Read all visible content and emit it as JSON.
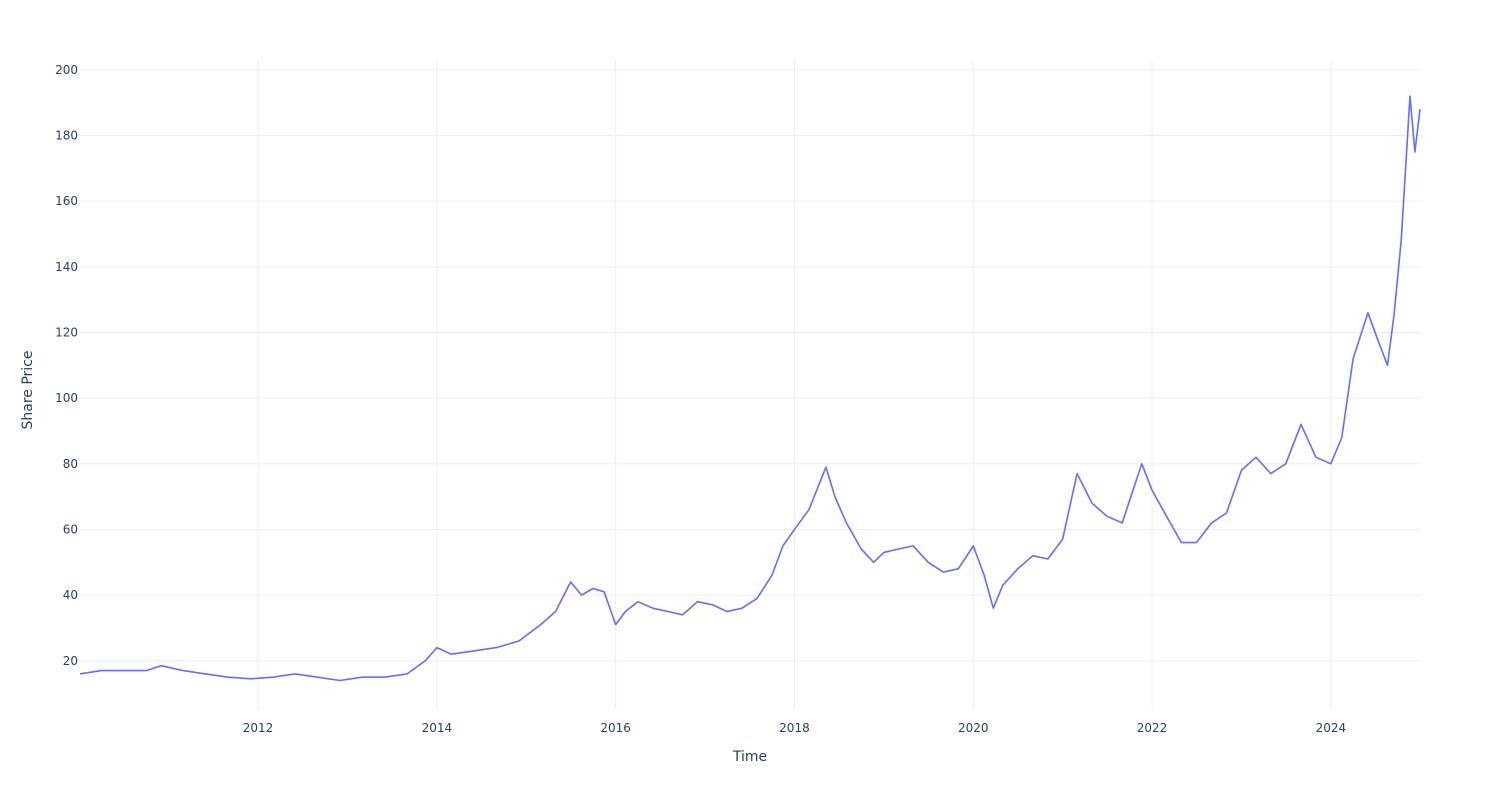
{
  "chart_data": {
    "type": "line",
    "xlabel": "Time",
    "ylabel": "Share Price",
    "x_tick_labels": [
      "2012",
      "2014",
      "2016",
      "2018",
      "2020",
      "2022",
      "2024"
    ],
    "y_tick_labels": [
      "20",
      "40",
      "60",
      "80",
      "100",
      "120",
      "140",
      "160",
      "180",
      "200"
    ],
    "xlim": [
      "2010-01-04",
      "2024-12-31"
    ],
    "ylim": [
      5,
      203
    ],
    "grid": true,
    "legend": "none",
    "colors": {
      "line": "#636efa",
      "grid": "#ebf0f8",
      "text": "#2a3f5f",
      "background": "#ffffff"
    },
    "series": [
      {
        "x": [
          "2010-01-04",
          "2010-04-01",
          "2010-07-01",
          "2010-10-01",
          "2010-12-01",
          "2011-03-01",
          "2011-06-01",
          "2011-09-01",
          "2011-12-01",
          "2012-03-01",
          "2012-06-01",
          "2012-09-01",
          "2012-12-01",
          "2013-03-01",
          "2013-06-01",
          "2013-09-01",
          "2013-11-15",
          "2014-01-01",
          "2014-03-01",
          "2014-06-01",
          "2014-09-01",
          "2014-12-01",
          "2015-03-01",
          "2015-05-01",
          "2015-07-01",
          "2015-08-15",
          "2015-10-01",
          "2015-11-15",
          "2016-01-01",
          "2016-02-10",
          "2016-04-01",
          "2016-06-01",
          "2016-08-01",
          "2016-10-01",
          "2016-12-01",
          "2017-02-01",
          "2017-04-01",
          "2017-06-01",
          "2017-08-01",
          "2017-10-01",
          "2017-11-15",
          "2018-01-01",
          "2018-03-01",
          "2018-05-10",
          "2018-06-15",
          "2018-08-01",
          "2018-10-01",
          "2018-11-20",
          "2019-01-01",
          "2019-03-01",
          "2019-05-01",
          "2019-07-01",
          "2019-09-01",
          "2019-11-01",
          "2020-01-01",
          "2020-02-15",
          "2020-03-23",
          "2020-05-01",
          "2020-07-01",
          "2020-09-01",
          "2020-11-01",
          "2021-01-01",
          "2021-03-01",
          "2021-05-01",
          "2021-07-01",
          "2021-09-01",
          "2021-11-20",
          "2022-01-01",
          "2022-03-01",
          "2022-05-01",
          "2022-07-01",
          "2022-09-01",
          "2022-11-01",
          "2023-01-01",
          "2023-03-01",
          "2023-05-01",
          "2023-07-01",
          "2023-09-01",
          "2023-11-01",
          "2024-01-01",
          "2024-02-15",
          "2024-04-01",
          "2024-06-01",
          "2024-07-15",
          "2024-08-20",
          "2024-09-15",
          "2024-10-15",
          "2024-11-20",
          "2024-12-10",
          "2024-12-31"
        ],
        "y": [
          16,
          17,
          17,
          17,
          18.5,
          17,
          16,
          15,
          14.5,
          15,
          16,
          15,
          14,
          15,
          15,
          16,
          20,
          24,
          22,
          23,
          24,
          26,
          31,
          35,
          44,
          40,
          42,
          41,
          31,
          35,
          38,
          36,
          35,
          34,
          38,
          37,
          35,
          36,
          39,
          46,
          55,
          60,
          66,
          79,
          70,
          62,
          54,
          50,
          53,
          54,
          55,
          50,
          47,
          48,
          55,
          46,
          36,
          43,
          48,
          52,
          51,
          57,
          77,
          68,
          64,
          62,
          80,
          72,
          64,
          56,
          56,
          62,
          65,
          78,
          82,
          77,
          80,
          92,
          82,
          80,
          88,
          112,
          126,
          117,
          110,
          125,
          148,
          192,
          175,
          188
        ]
      }
    ]
  }
}
